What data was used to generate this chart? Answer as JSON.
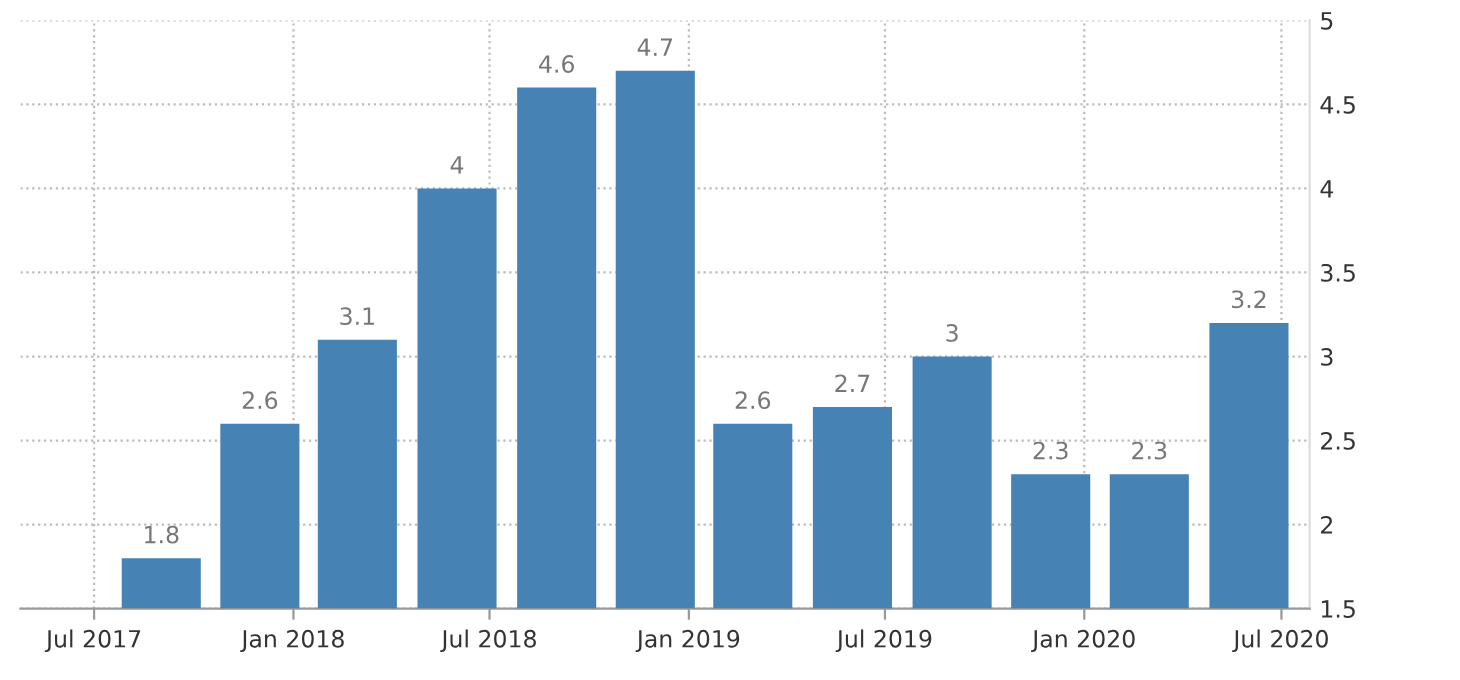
{
  "chart_data": {
    "type": "bar",
    "x": [
      "2017-09",
      "2017-12",
      "2018-03",
      "2018-06",
      "2018-09",
      "2018-12",
      "2019-03",
      "2019-06",
      "2019-09",
      "2019-12",
      "2020-03",
      "2020-06"
    ],
    "values": [
      1.8,
      2.6,
      3.1,
      4,
      4.6,
      4.7,
      2.6,
      2.7,
      3,
      2.3,
      2.3,
      3.2
    ],
    "color": "#4682b4",
    "data_labels": true,
    "xlim": [
      "2017-04-24",
      "2020-07-27"
    ],
    "xticks": [
      {
        "value": "2017-07",
        "label": "Jul 2017"
      },
      {
        "value": "2018-01",
        "label": "Jan 2018"
      },
      {
        "value": "2018-07",
        "label": "Jul 2018"
      },
      {
        "value": "2019-01",
        "label": "Jan 2019"
      },
      {
        "value": "2019-07",
        "label": "Jul 2019"
      },
      {
        "value": "2020-01",
        "label": "Jan 2020"
      },
      {
        "value": "2020-07",
        "label": "Jul 2020"
      }
    ],
    "ylim": [
      1.5,
      5
    ],
    "yticks": [
      1.5,
      2,
      2.5,
      3,
      3.5,
      4,
      4.5,
      5
    ],
    "grid": true,
    "legend": false
  }
}
